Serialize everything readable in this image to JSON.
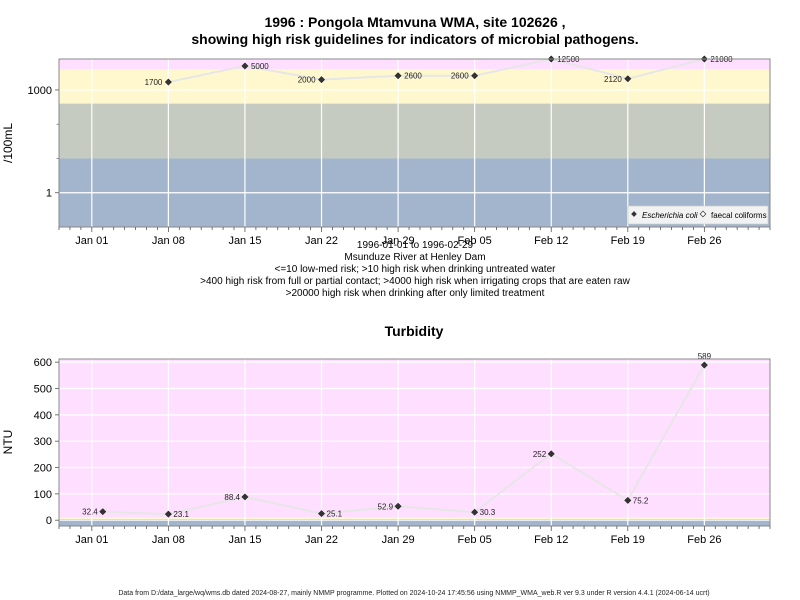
{
  "chart_data": [
    {
      "type": "line",
      "title_line1": "1996 : Pongola Mtamvuna WMA, site 102626 ,",
      "title_line2": "showing high risk guidelines for indicators of microbial pathogens.",
      "ylabel": "/100mL",
      "yscale": "log",
      "ylim": [
        0.1,
        8000
      ],
      "xlim": [
        "1995-12-29",
        "1996-03-03"
      ],
      "x_ticks": [
        {
          "date": "1996-01-01",
          "label": "Jan 01"
        },
        {
          "date": "1996-01-08",
          "label": "Jan 08"
        },
        {
          "date": "1996-01-15",
          "label": "Jan 15"
        },
        {
          "date": "1996-01-22",
          "label": "Jan 22"
        },
        {
          "date": "1996-01-29",
          "label": "Jan 29"
        },
        {
          "date": "1996-02-05",
          "label": "Feb 05"
        },
        {
          "date": "1996-02-12",
          "label": "Feb 12"
        },
        {
          "date": "1996-02-19",
          "label": "Feb 19"
        },
        {
          "date": "1996-02-26",
          "label": "Feb 26"
        }
      ],
      "y_ticks": [
        {
          "value": 1,
          "label": "1"
        },
        {
          "value": 1000,
          "label": "1000"
        }
      ],
      "bands": [
        {
          "from": 0.1,
          "to": 10,
          "color": "#a2b5cd"
        },
        {
          "from": 10,
          "to": 400,
          "color": "#c5cbc0"
        },
        {
          "from": 400,
          "to": 4000,
          "color": "#fff8cf"
        },
        {
          "from": 4000,
          "to": 20000,
          "color": "#ffdfff"
        },
        {
          "from": 20000,
          "to": 8000,
          "color": "#ffb5c5"
        }
      ],
      "grid": true,
      "legend_position": "bottom-right",
      "series": [
        {
          "name": "Escherichia coli",
          "marker": "filled",
          "points": [
            {
              "x": "1996-01-08",
              "y": 1700,
              "label": "1700"
            },
            {
              "x": "1996-01-15",
              "y": 5000,
              "label": "5000"
            },
            {
              "x": "1996-01-22",
              "y": 2000,
              "label": "2000"
            },
            {
              "x": "1996-01-29",
              "y": 2600,
              "label": "2600"
            },
            {
              "x": "1996-02-05",
              "y": 2600,
              "label": "2600"
            },
            {
              "x": "1996-02-12",
              "y": 12500,
              "label": "12500"
            },
            {
              "x": "1996-02-19",
              "y": 2120,
              "label": "2120"
            },
            {
              "x": "1996-02-26",
              "y": 21000,
              "label": "21000"
            }
          ]
        },
        {
          "name": "faecal coliforms",
          "marker": "open",
          "points": []
        }
      ],
      "subtitle_lines": [
        "1996-01-01 to 1996-02-29",
        "Msunduze River at Henley Dam",
        "<=10 low-med risk; >10 high risk when drinking untreated water",
        ">400 high risk from full or partial contact; >4000 high risk when irrigating crops that are eaten raw",
        ">20000 high risk when drinking after only limited treatment"
      ]
    },
    {
      "type": "line",
      "title": "Turbidity",
      "ylabel": "NTU",
      "ylim": [
        -22,
        612
      ],
      "xlim": [
        "1995-12-29",
        "1996-03-03"
      ],
      "x_ticks": [
        {
          "date": "1996-01-01",
          "label": "Jan 01"
        },
        {
          "date": "1996-01-08",
          "label": "Jan 08"
        },
        {
          "date": "1996-01-15",
          "label": "Jan 15"
        },
        {
          "date": "1996-01-22",
          "label": "Jan 22"
        },
        {
          "date": "1996-01-29",
          "label": "Jan 29"
        },
        {
          "date": "1996-02-05",
          "label": "Feb 05"
        },
        {
          "date": "1996-02-12",
          "label": "Feb 12"
        },
        {
          "date": "1996-02-19",
          "label": "Feb 19"
        },
        {
          "date": "1996-02-26",
          "label": "Feb 26"
        }
      ],
      "y_ticks": [
        {
          "value": 0,
          "label": "0"
        },
        {
          "value": 100,
          "label": "100"
        },
        {
          "value": 200,
          "label": "200"
        },
        {
          "value": 300,
          "label": "300"
        },
        {
          "value": 400,
          "label": "400"
        },
        {
          "value": 500,
          "label": "500"
        },
        {
          "value": 600,
          "label": "600"
        }
      ],
      "bands": [
        {
          "from": -22,
          "to": 1,
          "color": "#a2b5cd"
        },
        {
          "from": 1,
          "to": 5,
          "color": "#c5cbc0"
        },
        {
          "from": 5,
          "to": 10,
          "color": "#fff8cf"
        },
        {
          "from": 10,
          "to": 612,
          "color": "#ffdfff"
        }
      ],
      "grid": true,
      "series": [
        {
          "name": "",
          "marker": "filled",
          "points": [
            {
              "x": "1996-01-02",
              "y": 32.4,
              "label": "32.4"
            },
            {
              "x": "1996-01-08",
              "y": 23.1,
              "label": "23.1"
            },
            {
              "x": "1996-01-15",
              "y": 88.4,
              "label": "88.4"
            },
            {
              "x": "1996-01-22",
              "y": 25.1,
              "label": "25.1"
            },
            {
              "x": "1996-01-29",
              "y": 52.9,
              "label": "52.9"
            },
            {
              "x": "1996-02-05",
              "y": 30.3,
              "label": "30.3"
            },
            {
              "x": "1996-02-12",
              "y": 252,
              "label": "252"
            },
            {
              "x": "1996-02-19",
              "y": 75.2,
              "label": "75.2"
            },
            {
              "x": "1996-02-26",
              "y": 589,
              "label": "589"
            }
          ]
        }
      ]
    }
  ],
  "footer": "Data from D:/data_large/wq/wms.db dated 2024-08-27, mainly NMMP programme. Plotted on 2024-10-24 17:45:56 using NMMP_WMA_web.R ver 9.3 under R version 4.4.1 (2024-06-14 ucrt)"
}
